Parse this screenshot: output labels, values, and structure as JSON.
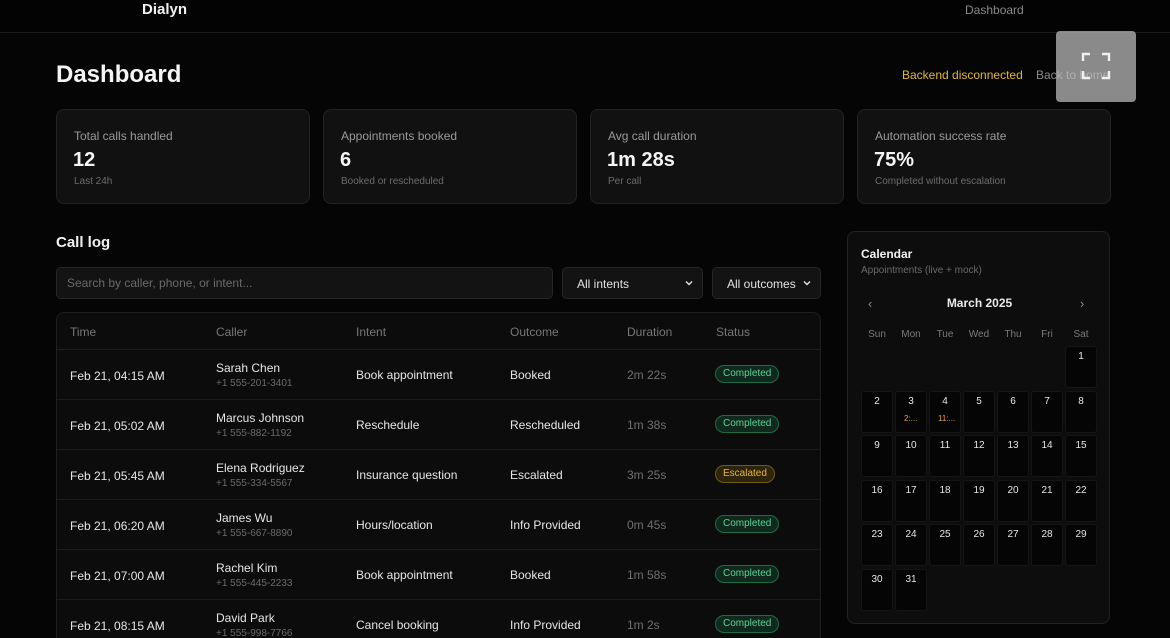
{
  "app": {
    "brand": "Dialyn",
    "nav_item": "Dashboard"
  },
  "header": {
    "title": "Dashboard",
    "backend_status": "Backend disconnected",
    "back_link": "Back to home"
  },
  "stats": [
    {
      "label": "Total calls handled",
      "value": "12",
      "sub": "Last 24h"
    },
    {
      "label": "Appointments booked",
      "value": "6",
      "sub": "Booked or rescheduled"
    },
    {
      "label": "Avg call duration",
      "value": "1m 28s",
      "sub": "Per call"
    },
    {
      "label": "Automation success rate",
      "value": "75%",
      "sub": "Completed without escalation"
    }
  ],
  "call_log": {
    "title": "Call log",
    "search_placeholder": "Search by caller, phone, or intent...",
    "intent_filter": "All intents",
    "outcome_filter": "All outcomes",
    "columns": [
      "Time",
      "Caller",
      "Intent",
      "Outcome",
      "Duration",
      "Status"
    ],
    "rows": [
      {
        "time": "Feb 21, 04:15 AM",
        "name": "Sarah Chen",
        "phone": "+1 555-201-3401",
        "intent": "Book appointment",
        "outcome": "Booked",
        "duration": "2m 22s",
        "status": "Completed"
      },
      {
        "time": "Feb 21, 05:02 AM",
        "name": "Marcus Johnson",
        "phone": "+1 555-882-1192",
        "intent": "Reschedule",
        "outcome": "Rescheduled",
        "duration": "1m 38s",
        "status": "Completed"
      },
      {
        "time": "Feb 21, 05:45 AM",
        "name": "Elena Rodriguez",
        "phone": "+1 555-334-5567",
        "intent": "Insurance question",
        "outcome": "Escalated",
        "duration": "3m 25s",
        "status": "Escalated"
      },
      {
        "time": "Feb 21, 06:20 AM",
        "name": "James Wu",
        "phone": "+1 555-667-8890",
        "intent": "Hours/location",
        "outcome": "Info Provided",
        "duration": "0m 45s",
        "status": "Completed"
      },
      {
        "time": "Feb 21, 07:00 AM",
        "name": "Rachel Kim",
        "phone": "+1 555-445-2233",
        "intent": "Book appointment",
        "outcome": "Booked",
        "duration": "1m 58s",
        "status": "Completed"
      },
      {
        "time": "Feb 21, 08:15 AM",
        "name": "David Park",
        "phone": "+1 555-998-7766",
        "intent": "Cancel booking",
        "outcome": "Info Provided",
        "duration": "1m 2s",
        "status": "Completed"
      }
    ]
  },
  "calendar": {
    "title": "Calendar",
    "subtitle": "Appointments (live + mock)",
    "month": "March 2025",
    "prev_icon": "‹",
    "next_icon": "›",
    "weekdays": [
      "Sun",
      "Mon",
      "Tue",
      "Wed",
      "Thu",
      "Fri",
      "Sat"
    ],
    "first_weekday_index": 6,
    "days_in_month": 31,
    "events": {
      "3": "2:...",
      "4": "11:..."
    }
  },
  "colors": {
    "warning": "#e2b731",
    "completed": "#5fd196",
    "escalated": "#e3b542",
    "event": "#e2a33a"
  }
}
